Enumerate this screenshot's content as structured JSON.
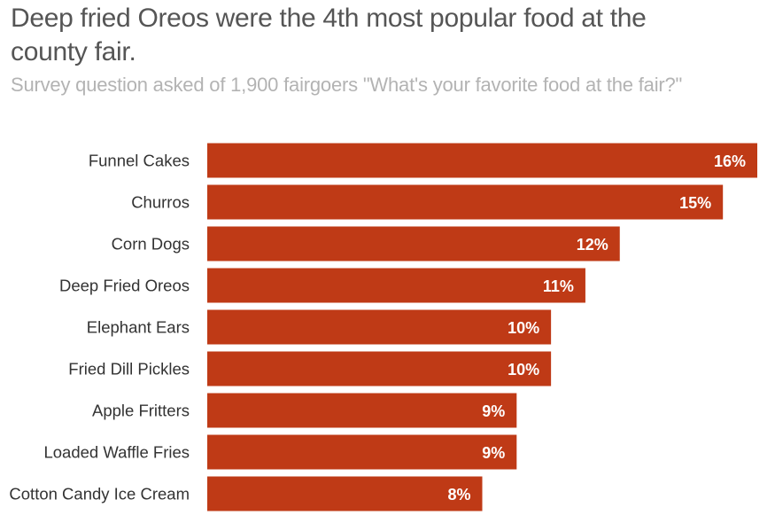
{
  "chart_data": {
    "type": "bar",
    "orientation": "horizontal",
    "title": "Deep fried Oreos were the 4th most popular food at the county fair.",
    "subtitle": "Survey question asked of 1,900 fairgoers \"What's your favorite food at the fair?\"",
    "categories": [
      "Funnel Cakes",
      "Churros",
      "Corn Dogs",
      "Deep Fried Oreos",
      "Elephant Ears",
      "Fried Dill Pickles",
      "Apple Fritters",
      "Loaded Waffle Fries",
      "Cotton Candy Ice Cream"
    ],
    "values": [
      16,
      15,
      12,
      11,
      10,
      10,
      9,
      9,
      8
    ],
    "value_labels": [
      "16%",
      "15%",
      "12%",
      "11%",
      "10%",
      "10%",
      "9%",
      "9%",
      "8%"
    ],
    "xlim": [
      0,
      16
    ],
    "grid": false,
    "bar_color": "#bf3a16"
  }
}
